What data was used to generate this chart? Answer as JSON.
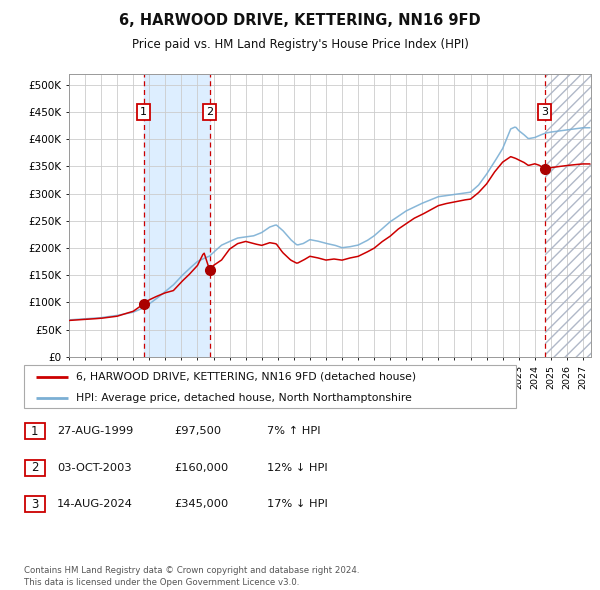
{
  "title": "6, HARWOOD DRIVE, KETTERING, NN16 9FD",
  "subtitle": "Price paid vs. HM Land Registry's House Price Index (HPI)",
  "xlim_start": 1995.0,
  "xlim_end": 2027.5,
  "ylim": [
    0,
    520000
  ],
  "yticks": [
    0,
    50000,
    100000,
    150000,
    200000,
    250000,
    300000,
    350000,
    400000,
    450000,
    500000
  ],
  "ytick_labels": [
    "£0",
    "£50K",
    "£100K",
    "£150K",
    "£200K",
    "£250K",
    "£300K",
    "£350K",
    "£400K",
    "£450K",
    "£500K"
  ],
  "transactions": [
    {
      "num": 1,
      "date": "27-AUG-1999",
      "year": 1999.65,
      "price": 97500,
      "pct": "7%",
      "dir": "↑"
    },
    {
      "num": 2,
      "date": "03-OCT-2003",
      "year": 2003.75,
      "price": 160000,
      "pct": "12%",
      "dir": "↓"
    },
    {
      "num": 3,
      "date": "14-AUG-2024",
      "year": 2024.62,
      "price": 345000,
      "pct": "17%",
      "dir": "↓"
    }
  ],
  "hpi_color": "#7bafd4",
  "price_color": "#cc0000",
  "dot_color": "#aa0000",
  "shade_color": "#ddeeff",
  "grid_color": "#cccccc",
  "bg_color": "#ffffff",
  "legend_label_price": "6, HARWOOD DRIVE, KETTERING, NN16 9FD (detached house)",
  "legend_label_hpi": "HPI: Average price, detached house, North Northamptonshire",
  "footer": "Contains HM Land Registry data © Crown copyright and database right 2024.\nThis data is licensed under the Open Government Licence v3.0.",
  "hpi_anchors": [
    [
      1995.0,
      68000
    ],
    [
      1996.0,
      70000
    ],
    [
      1997.0,
      72000
    ],
    [
      1998.0,
      76000
    ],
    [
      1999.0,
      82000
    ],
    [
      1999.65,
      90000
    ],
    [
      2000.0,
      97000
    ],
    [
      2000.5,
      108000
    ],
    [
      2001.0,
      120000
    ],
    [
      2001.5,
      132000
    ],
    [
      2002.0,
      148000
    ],
    [
      2002.5,
      162000
    ],
    [
      2003.0,
      175000
    ],
    [
      2003.5,
      182000
    ],
    [
      2003.75,
      185000
    ],
    [
      2004.0,
      192000
    ],
    [
      2004.5,
      205000
    ],
    [
      2005.0,
      212000
    ],
    [
      2005.5,
      218000
    ],
    [
      2006.0,
      220000
    ],
    [
      2006.5,
      222000
    ],
    [
      2007.0,
      228000
    ],
    [
      2007.5,
      238000
    ],
    [
      2007.9,
      242000
    ],
    [
      2008.3,
      232000
    ],
    [
      2008.8,
      215000
    ],
    [
      2009.2,
      205000
    ],
    [
      2009.6,
      208000
    ],
    [
      2010.0,
      215000
    ],
    [
      2010.5,
      212000
    ],
    [
      2011.0,
      208000
    ],
    [
      2011.5,
      205000
    ],
    [
      2012.0,
      200000
    ],
    [
      2012.5,
      202000
    ],
    [
      2013.0,
      205000
    ],
    [
      2013.5,
      212000
    ],
    [
      2014.0,
      222000
    ],
    [
      2014.5,
      235000
    ],
    [
      2015.0,
      248000
    ],
    [
      2015.5,
      258000
    ],
    [
      2016.0,
      268000
    ],
    [
      2016.5,
      275000
    ],
    [
      2017.0,
      282000
    ],
    [
      2017.5,
      288000
    ],
    [
      2018.0,
      294000
    ],
    [
      2018.5,
      296000
    ],
    [
      2019.0,
      298000
    ],
    [
      2019.5,
      300000
    ],
    [
      2020.0,
      302000
    ],
    [
      2020.5,
      315000
    ],
    [
      2021.0,
      335000
    ],
    [
      2021.5,
      358000
    ],
    [
      2022.0,
      382000
    ],
    [
      2022.5,
      418000
    ],
    [
      2022.8,
      422000
    ],
    [
      2023.0,
      415000
    ],
    [
      2023.3,
      408000
    ],
    [
      2023.6,
      400000
    ],
    [
      2024.0,
      402000
    ],
    [
      2024.3,
      406000
    ],
    [
      2024.62,
      410000
    ],
    [
      2025.0,
      412000
    ],
    [
      2026.0,
      416000
    ],
    [
      2027.0,
      420000
    ]
  ],
  "price_anchors": [
    [
      1995.0,
      67000
    ],
    [
      1996.0,
      69000
    ],
    [
      1997.0,
      71000
    ],
    [
      1998.0,
      75000
    ],
    [
      1999.0,
      84000
    ],
    [
      1999.65,
      97500
    ],
    [
      2000.0,
      105000
    ],
    [
      2000.5,
      112000
    ],
    [
      2001.0,
      118000
    ],
    [
      2001.5,
      122000
    ],
    [
      2002.0,
      138000
    ],
    [
      2002.5,
      152000
    ],
    [
      2003.0,
      168000
    ],
    [
      2003.4,
      192000
    ],
    [
      2003.75,
      160000
    ],
    [
      2004.0,
      168000
    ],
    [
      2004.5,
      178000
    ],
    [
      2005.0,
      198000
    ],
    [
      2005.5,
      208000
    ],
    [
      2006.0,
      212000
    ],
    [
      2006.5,
      208000
    ],
    [
      2007.0,
      205000
    ],
    [
      2007.5,
      210000
    ],
    [
      2007.9,
      208000
    ],
    [
      2008.3,
      192000
    ],
    [
      2008.8,
      178000
    ],
    [
      2009.2,
      172000
    ],
    [
      2009.6,
      178000
    ],
    [
      2010.0,
      185000
    ],
    [
      2010.5,
      182000
    ],
    [
      2011.0,
      178000
    ],
    [
      2011.5,
      180000
    ],
    [
      2012.0,
      178000
    ],
    [
      2012.5,
      182000
    ],
    [
      2013.0,
      185000
    ],
    [
      2013.5,
      192000
    ],
    [
      2014.0,
      200000
    ],
    [
      2014.5,
      212000
    ],
    [
      2015.0,
      222000
    ],
    [
      2015.5,
      235000
    ],
    [
      2016.0,
      245000
    ],
    [
      2016.5,
      255000
    ],
    [
      2017.0,
      262000
    ],
    [
      2017.5,
      270000
    ],
    [
      2018.0,
      278000
    ],
    [
      2018.5,
      282000
    ],
    [
      2019.0,
      285000
    ],
    [
      2019.5,
      288000
    ],
    [
      2020.0,
      290000
    ],
    [
      2020.5,
      302000
    ],
    [
      2021.0,
      318000
    ],
    [
      2021.5,
      340000
    ],
    [
      2022.0,
      358000
    ],
    [
      2022.5,
      368000
    ],
    [
      2022.8,
      365000
    ],
    [
      2023.0,
      362000
    ],
    [
      2023.3,
      358000
    ],
    [
      2023.6,
      352000
    ],
    [
      2024.0,
      355000
    ],
    [
      2024.3,
      352000
    ],
    [
      2024.62,
      345000
    ],
    [
      2025.0,
      348000
    ],
    [
      2026.0,
      352000
    ],
    [
      2027.0,
      355000
    ]
  ]
}
